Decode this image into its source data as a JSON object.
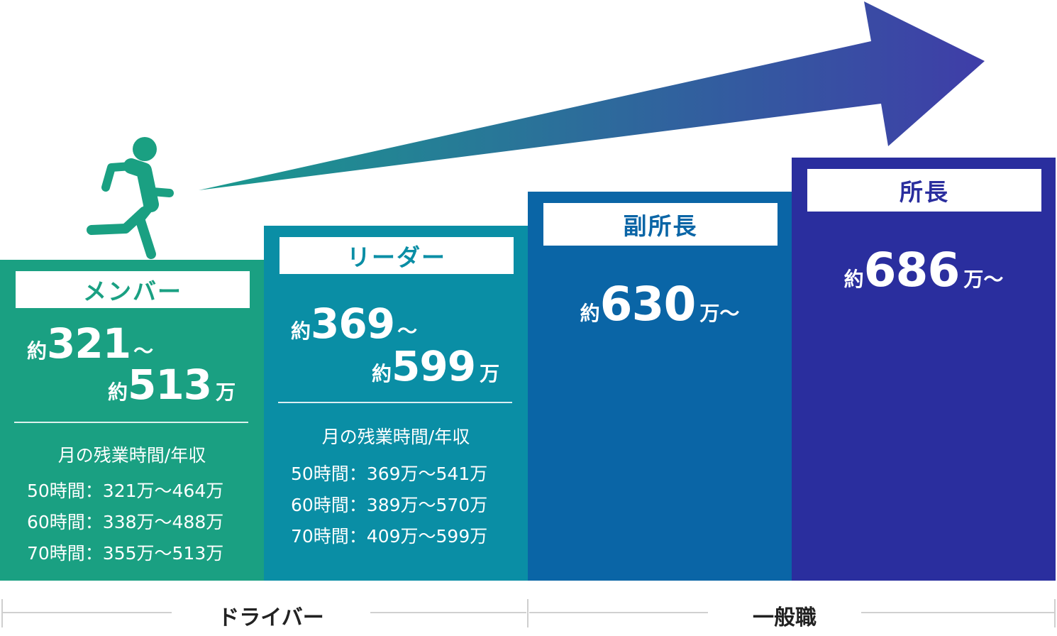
{
  "colors": {
    "member": "#1aa082",
    "leader": "#0a8ea5",
    "vice": "#0a65a6",
    "chief": "#2a2e9e",
    "arrow_start": "#1a9a8e",
    "arrow_end": "#3f3da8",
    "runner": "#1aa082"
  },
  "icons": {
    "runner": "running-person-icon",
    "arrow": "up-right-arrow-icon"
  },
  "steps": {
    "member": {
      "title": "メンバー",
      "prefix1": "約",
      "value1": "321",
      "tilde1": "〜",
      "prefix2": "約",
      "value2": "513",
      "unit2": "万",
      "note_heading": "月の残業時間/年収",
      "rows": [
        "50時間：321万〜464万",
        "60時間：338万〜488万",
        "70時間：355万〜513万"
      ]
    },
    "leader": {
      "title": "リーダー",
      "prefix1": "約",
      "value1": "369",
      "tilde1": "〜",
      "prefix2": "約",
      "value2": "599",
      "unit2": "万",
      "note_heading": "月の残業時間/年収",
      "rows": [
        "50時間：369万〜541万",
        "60時間：389万〜570万",
        "70時間：409万〜599万"
      ]
    },
    "vice": {
      "title": "副所長",
      "prefix": "約",
      "value": "630",
      "unit": "万〜"
    },
    "chief": {
      "title": "所長",
      "prefix": "約",
      "value": "686",
      "unit": "万〜"
    }
  },
  "categories": {
    "driver": "ドライバー",
    "general": "一般職"
  }
}
